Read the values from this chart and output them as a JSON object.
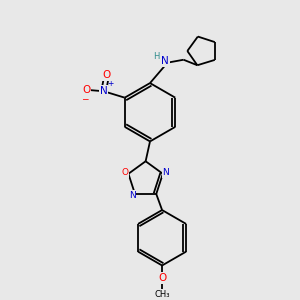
{
  "background_color": "#e8e8e8",
  "bond_color": "#000000",
  "atom_colors": {
    "N": "#0000cd",
    "O": "#ff0000",
    "C": "#000000",
    "H": "#2e8b8b"
  },
  "font_size_atoms": 7.5,
  "font_size_small": 6.0,
  "line_width": 1.3,
  "lw_ring": 1.3
}
